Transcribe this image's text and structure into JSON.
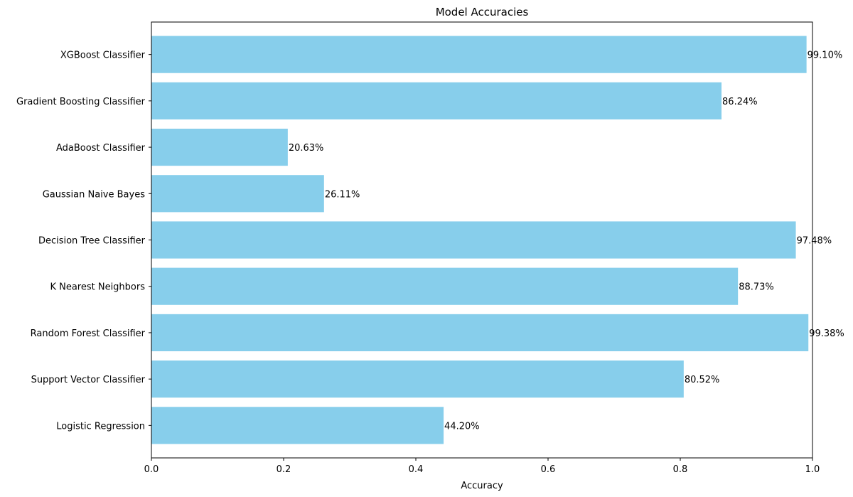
{
  "chart_data": {
    "type": "bar",
    "orientation": "horizontal",
    "title": "Model Accuracies",
    "xlabel": "Accuracy",
    "ylabel": "",
    "xlim": [
      0,
      1.0
    ],
    "xticks": [
      "0.0",
      "0.2",
      "0.4",
      "0.6",
      "0.8",
      "1.0"
    ],
    "xtick_values": [
      0,
      0.2,
      0.4,
      0.6,
      0.8,
      1.0
    ],
    "grid": false,
    "bar_color": "#87ceeb",
    "categories": [
      "Logistic Regression",
      "Support Vector Classifier",
      "Random Forest Classifier",
      "K Nearest Neighbors",
      "Decision Tree Classifier",
      "Gaussian Naive Bayes",
      "AdaBoost Classifier",
      "Gradient Boosting Classifier",
      "XGBoost Classifier"
    ],
    "values": [
      0.442,
      0.8052,
      0.9938,
      0.8873,
      0.9748,
      0.2611,
      0.2063,
      0.8624,
      0.991
    ],
    "data_labels": [
      "44.20%",
      "80.52%",
      "99.38%",
      "88.73%",
      "97.48%",
      "26.11%",
      "20.63%",
      "86.24%",
      "99.10%"
    ]
  }
}
